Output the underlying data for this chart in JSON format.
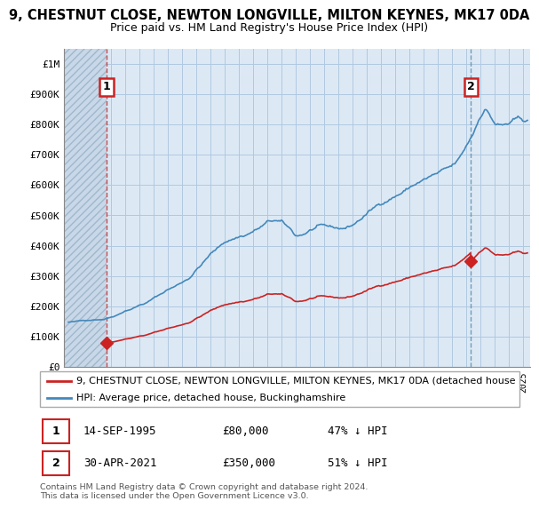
{
  "title": "9, CHESTNUT CLOSE, NEWTON LONGVILLE, MILTON KEYNES, MK17 0DA",
  "subtitle": "Price paid vs. HM Land Registry's House Price Index (HPI)",
  "ylabel_ticks": [
    "£0",
    "£100K",
    "£200K",
    "£300K",
    "£400K",
    "£500K",
    "£600K",
    "£700K",
    "£800K",
    "£900K",
    "£1M"
  ],
  "ytick_values": [
    0,
    100000,
    200000,
    300000,
    400000,
    500000,
    600000,
    700000,
    800000,
    900000,
    1000000
  ],
  "ylim": [
    0,
    1050000
  ],
  "xlim_start": 1992.7,
  "xlim_end": 2025.5,
  "plot_bg": "#dce9f5",
  "hatch_bg": "#c8d8e8",
  "grid_color": "#b0c8e0",
  "red_color": "#cc2222",
  "blue_color": "#4488bb",
  "sale1_year": 1995.71,
  "sale1_price": 80000,
  "sale2_year": 2021.33,
  "sale2_price": 350000,
  "legend_line1": "9, CHESTNUT CLOSE, NEWTON LONGVILLE, MILTON KEYNES, MK17 0DA (detached house",
  "legend_line2": "HPI: Average price, detached house, Buckinghamshire",
  "annot1_date": "14-SEP-1995",
  "annot1_price": "£80,000",
  "annot1_hpi": "47% ↓ HPI",
  "annot2_date": "30-APR-2021",
  "annot2_price": "£350,000",
  "annot2_hpi": "51% ↓ HPI",
  "footer": "Contains HM Land Registry data © Crown copyright and database right 2024.\nThis data is licensed under the Open Government Licence v3.0.",
  "title_fontsize": 10.5,
  "subtitle_fontsize": 9
}
